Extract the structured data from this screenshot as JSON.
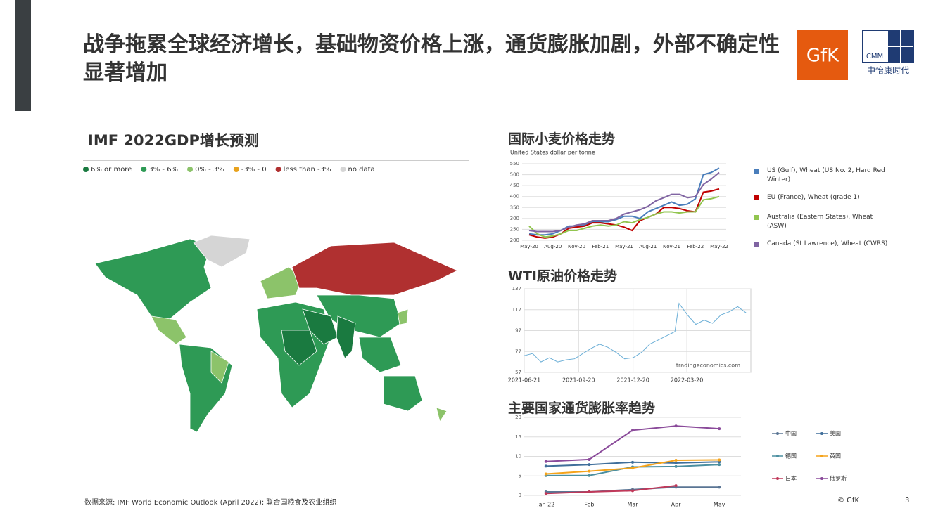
{
  "header": {
    "title": "战争拖累全球经济增长，基础物资价格上涨，通货膨胀加剧，外部不确定性显著增加"
  },
  "logos": {
    "gfk": "GfK",
    "cmm": "CMM",
    "cmm_name": "中怡康时代"
  },
  "map": {
    "title": "IMF 2022GDP增长预测",
    "legend": [
      {
        "label": "6% or more",
        "color": "#1a7a40"
      },
      {
        "label": "3% - 6%",
        "color": "#2e9a55"
      },
      {
        "label": "0% - 3%",
        "color": "#8cc36a"
      },
      {
        "label": "-3% - 0",
        "color": "#e8a21d"
      },
      {
        "label": "less than -3%",
        "color": "#b03030"
      },
      {
        "label": "no data",
        "color": "#d5d5d5"
      }
    ]
  },
  "chart_data": [
    {
      "type": "line",
      "title": "国际小麦价格走势",
      "ylabel": "United States dollar per tonne",
      "categories": [
        "May-20",
        null,
        null,
        "Aug-20",
        null,
        null,
        "Nov-20",
        null,
        null,
        "Feb-21",
        null,
        null,
        "May-21",
        null,
        null,
        "Aug-21",
        null,
        null,
        "Nov-21",
        null,
        null,
        "Feb-22",
        null,
        null,
        "May-22"
      ],
      "ylim": [
        200,
        550
      ],
      "yticks": [
        200,
        250,
        300,
        350,
        400,
        450,
        500,
        550
      ],
      "grid": true,
      "series": [
        {
          "name": "US (Gulf), Wheat (US No. 2, Hard Red Winter)",
          "color": "#4a7ebb",
          "values": [
            230,
            225,
            225,
            230,
            245,
            265,
            265,
            270,
            285,
            285,
            285,
            295,
            310,
            310,
            300,
            330,
            345,
            360,
            375,
            360,
            365,
            390,
            500,
            510,
            530
          ]
        },
        {
          "name": "EU (France), Wheat (grade 1)",
          "color": "#c00000",
          "values": [
            225,
            215,
            210,
            215,
            230,
            255,
            260,
            265,
            280,
            280,
            275,
            270,
            260,
            245,
            290,
            305,
            320,
            350,
            350,
            345,
            335,
            330,
            420,
            425,
            435
          ]
        },
        {
          "name": "Australia (Eastern States), Wheat (ASW)",
          "color": "#92c550",
          "values": [
            265,
            230,
            215,
            220,
            230,
            245,
            245,
            255,
            265,
            270,
            265,
            270,
            285,
            280,
            295,
            305,
            320,
            330,
            330,
            325,
            330,
            330,
            385,
            390,
            400
          ]
        },
        {
          "name": "Canada (St Lawrence), Wheat (CWRS)",
          "color": "#8064a2",
          "values": [
            245,
            240,
            240,
            240,
            245,
            260,
            270,
            275,
            290,
            290,
            290,
            300,
            320,
            330,
            340,
            355,
            380,
            395,
            410,
            410,
            395,
            400,
            455,
            480,
            510
          ]
        }
      ]
    },
    {
      "type": "line",
      "title": "WTI原油价格走势",
      "watermark": "tradingeconomics.com",
      "x": [
        "2021-06-21",
        "2021-07-05",
        "2021-07-19",
        "2021-08-02",
        "2021-08-16",
        "2021-08-30",
        "2021-09-13",
        "2021-09-27",
        "2021-10-11",
        "2021-10-25",
        "2021-11-08",
        "2021-11-22",
        "2021-12-06",
        "2021-12-20",
        "2022-01-03",
        "2022-01-17",
        "2022-01-31",
        "2022-02-14",
        "2022-02-28",
        "2022-03-07",
        "2022-03-21",
        "2022-04-04",
        "2022-04-18",
        "2022-05-02",
        "2022-05-16",
        "2022-05-30",
        "2022-06-13",
        "2022-06-27"
      ],
      "xlim": [
        "2021-06-21",
        "2022-07-05"
      ],
      "xticks": [
        "2021-06-21",
        "2021-09-20",
        "2021-12-20",
        "2022-03-20"
      ],
      "ylim": [
        57,
        137
      ],
      "yticks": [
        57,
        77,
        97,
        117,
        137
      ],
      "grid": true,
      "series": [
        {
          "name": "WTI",
          "color": "#6aaed6",
          "values": [
            73,
            75,
            67,
            71,
            67,
            69,
            70,
            75,
            80,
            84,
            81,
            76,
            70,
            71,
            76,
            84,
            88,
            92,
            96,
            123,
            112,
            103,
            107,
            104,
            112,
            115,
            120,
            114
          ]
        }
      ]
    },
    {
      "type": "line",
      "title": "主要国家通货膨胀率趋势",
      "categories": [
        "Jan 22",
        "Feb",
        "Mar",
        "Apr",
        "May"
      ],
      "ylim": [
        0,
        20
      ],
      "yticks": [
        0,
        5,
        10,
        15,
        20
      ],
      "grid": true,
      "series": [
        {
          "name": "中国",
          "color": "#5a7594",
          "values": [
            0.9,
            0.9,
            1.5,
            2.1,
            2.1
          ]
        },
        {
          "name": "美国",
          "color": "#3f6e9a",
          "values": [
            7.5,
            7.9,
            8.5,
            8.3,
            8.6
          ]
        },
        {
          "name": "德国",
          "color": "#4b8fa0",
          "values": [
            5.1,
            5.1,
            7.3,
            7.4,
            7.9
          ]
        },
        {
          "name": "英国",
          "color": "#f5a31a",
          "values": [
            5.5,
            6.2,
            7.0,
            9.0,
            9.1
          ]
        },
        {
          "name": "日本",
          "color": "#c0395a",
          "values": [
            0.5,
            0.9,
            1.2,
            2.5,
            null
          ]
        },
        {
          "name": "俄罗斯",
          "color": "#8a4a9a",
          "values": [
            8.7,
            9.2,
            16.7,
            17.8,
            17.1
          ]
        }
      ]
    }
  ],
  "footer": {
    "source": "数据来源: IMF World Economic Outlook (April 2022); 联合国粮食及农业组织",
    "copyright": "© GfK",
    "page": "3"
  }
}
